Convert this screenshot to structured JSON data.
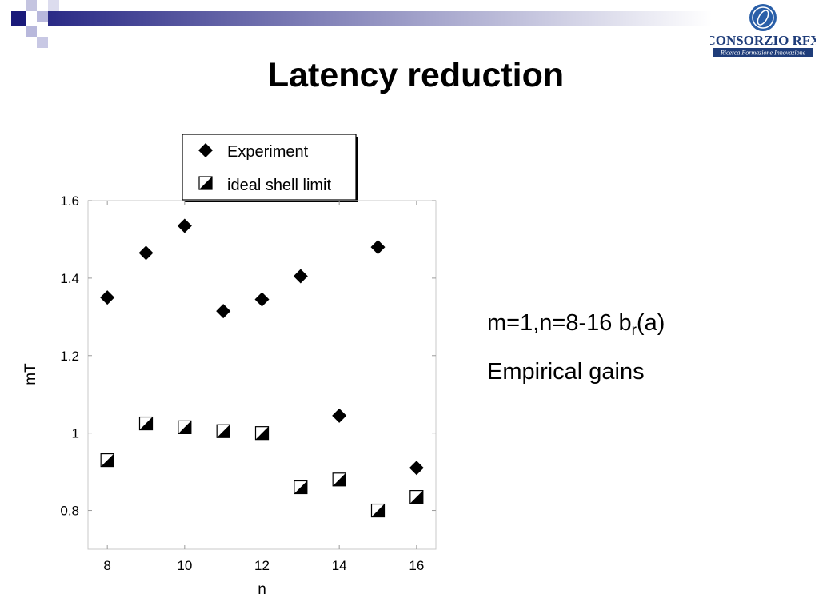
{
  "slide": {
    "title": "Latency reduction",
    "annotation_line1_pre": "m=1,n=8-16  b",
    "annotation_line1_sub": "r",
    "annotation_line1_post": "(a)",
    "annotation_line2": "Empirical gains"
  },
  "logo": {
    "name": "CONSORZIO RFX",
    "tagline": "Ricerca Formazione Innovazione",
    "colors": {
      "navy": "#1f3d7a",
      "blue": "#2a5fa8"
    }
  },
  "header": {
    "colors": {
      "square_dark": "#1a1a7a",
      "square_light": "#b8b8dc",
      "gradient_start": "#2a2a86",
      "gradient_end": "#ffffff"
    }
  },
  "chart_data": {
    "type": "scatter",
    "title": "",
    "xlabel": "n",
    "ylabel": "mT",
    "xlim": [
      7.5,
      16.5
    ],
    "ylim": [
      0.7,
      1.6
    ],
    "xticks": [
      8,
      10,
      12,
      14,
      16
    ],
    "yticks": [
      0.8,
      1,
      1.2,
      1.4,
      1.6
    ],
    "ytick_labels": [
      "0.8",
      "1",
      "1.2",
      "1.4",
      "1.6"
    ],
    "grid": false,
    "legend_position": "top, above plot",
    "series": [
      {
        "name": "Experiment",
        "marker": "diamond-filled",
        "x": [
          8,
          9,
          10,
          11,
          12,
          13,
          14,
          15,
          16
        ],
        "y": [
          1.35,
          1.465,
          1.535,
          1.315,
          1.345,
          1.405,
          1.045,
          1.48,
          0.91
        ]
      },
      {
        "name": "ideal shell limit",
        "marker": "square-half-filled",
        "x": [
          8,
          9,
          10,
          11,
          12,
          13,
          14,
          15,
          16
        ],
        "y": [
          0.93,
          1.025,
          1.015,
          1.005,
          1.0,
          0.86,
          0.88,
          0.8,
          0.835
        ]
      }
    ]
  }
}
